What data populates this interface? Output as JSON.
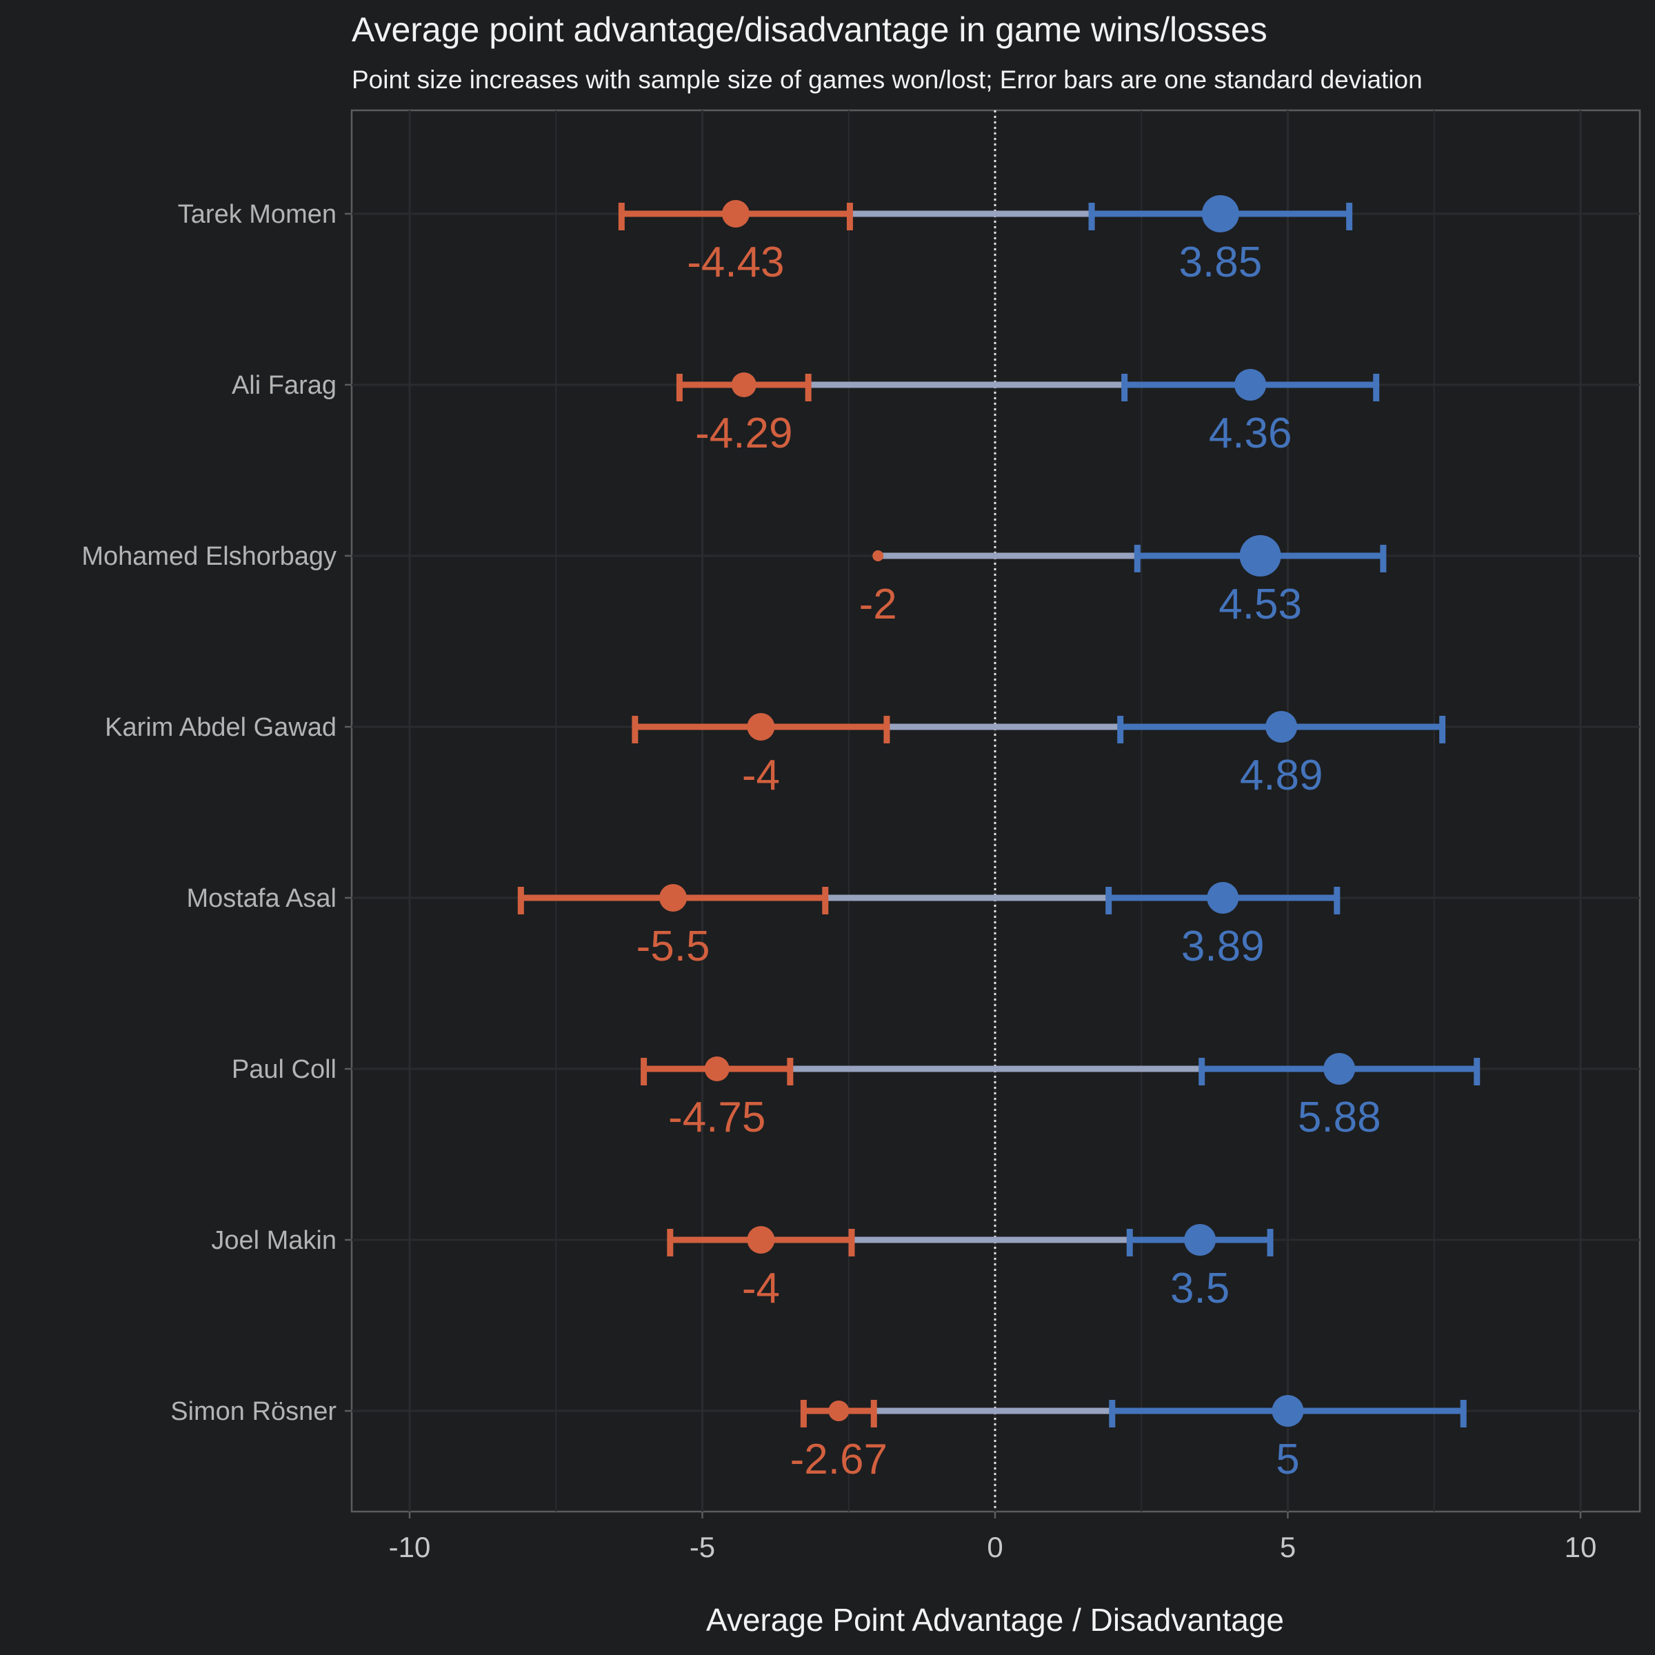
{
  "chart_data": {
    "type": "scatter",
    "title": "Average point advantage/disadvantage in game wins/losses",
    "subtitle": "Point size increases with sample size of games won/lost; Error bars are one standard deviation",
    "xlabel": "Average Point Advantage / Disadvantage",
    "ylabel": "",
    "xlim": [
      -10,
      10
    ],
    "x_ticks": [
      "-10",
      "-5",
      "0",
      "5",
      "10"
    ],
    "grid": true,
    "reference_line": 0,
    "players": [
      {
        "name": "Tarek Momen",
        "loss": {
          "mean": -4.43,
          "sd": 1.95,
          "label": "-4.43"
        },
        "win": {
          "mean": 3.85,
          "sd": 2.2,
          "label": "3.85"
        }
      },
      {
        "name": "Ali Farag",
        "loss": {
          "mean": -4.29,
          "sd": 1.1,
          "label": "-4.29"
        },
        "win": {
          "mean": 4.36,
          "sd": 2.15,
          "label": "4.36"
        }
      },
      {
        "name": "Mohamed Elshorbagy",
        "loss": {
          "mean": -2,
          "sd": 0,
          "label": "-2"
        },
        "win": {
          "mean": 4.53,
          "sd": 2.1,
          "label": "4.53"
        }
      },
      {
        "name": "Karim Abdel Gawad",
        "loss": {
          "mean": -4,
          "sd": 2.15,
          "label": "-4"
        },
        "win": {
          "mean": 4.89,
          "sd": 2.75,
          "label": "4.89"
        }
      },
      {
        "name": "Mostafa Asal",
        "loss": {
          "mean": -5.5,
          "sd": 2.6,
          "label": "-5.5"
        },
        "win": {
          "mean": 3.89,
          "sd": 1.95,
          "label": "3.89"
        }
      },
      {
        "name": "Paul Coll",
        "loss": {
          "mean": -4.75,
          "sd": 1.25,
          "label": "-4.75"
        },
        "win": {
          "mean": 5.88,
          "sd": 2.35,
          "label": "5.88"
        }
      },
      {
        "name": "Joel Makin",
        "loss": {
          "mean": -4,
          "sd": 1.55,
          "label": "-4"
        },
        "win": {
          "mean": 3.5,
          "sd": 1.2,
          "label": "3.5"
        }
      },
      {
        "name": "Simon Rösner",
        "loss": {
          "mean": -2.67,
          "sd": 0.6,
          "label": "-2.67"
        },
        "win": {
          "mean": 5,
          "sd": 3,
          "label": "5"
        }
      }
    ],
    "colors": {
      "background": "#1d1e20",
      "loss": "#d2603f",
      "win": "#4474bc",
      "connector": "#98a3c0",
      "zero_line": "#e6e6e6",
      "panel_border": "#5c5c5c",
      "grid": "#2a2b2e"
    }
  }
}
